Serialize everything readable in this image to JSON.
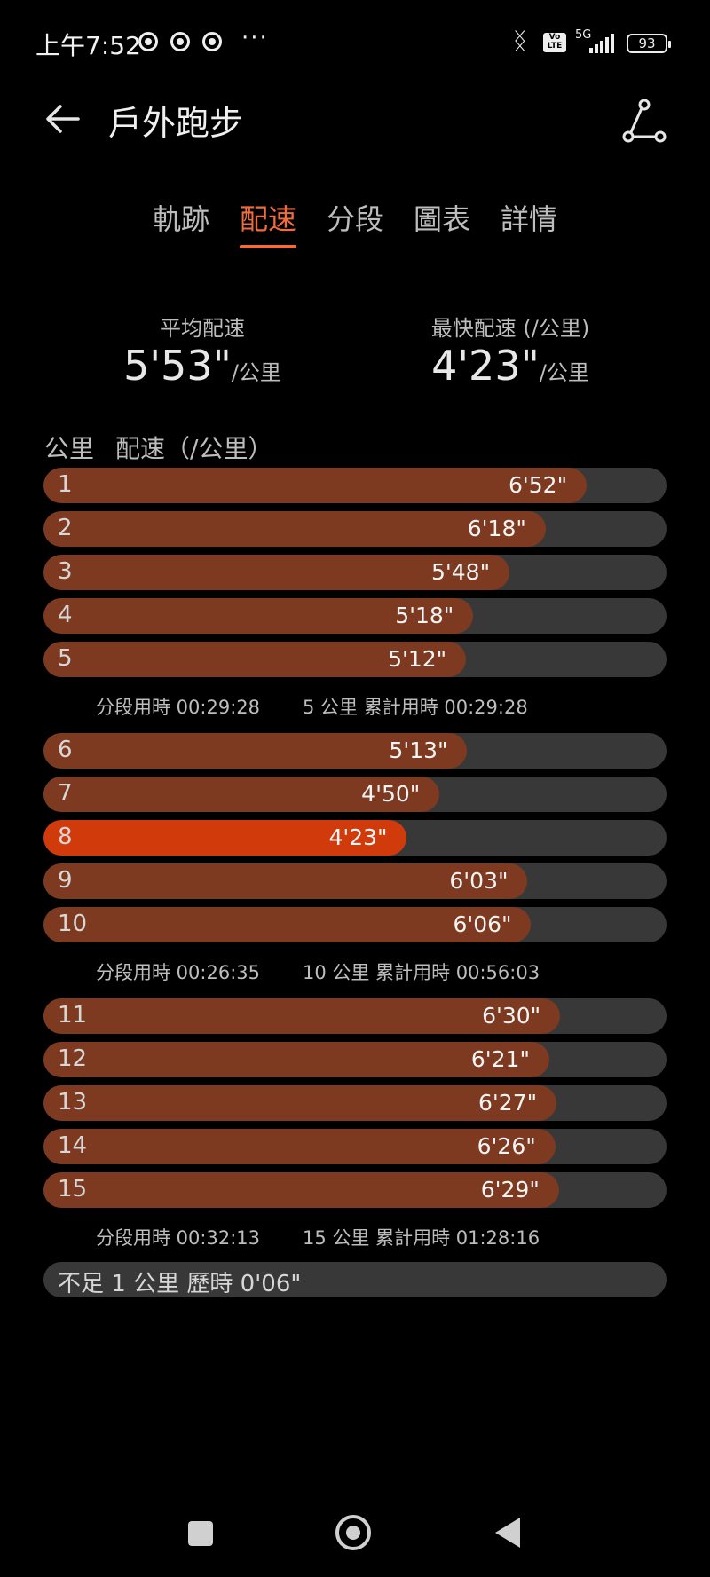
{
  "status_bar": {
    "time": "上午7:52",
    "dots": "···",
    "volte": "Vo LTE",
    "network": "5G",
    "battery": "93"
  },
  "header": {
    "title": "戶外跑步"
  },
  "tabs": [
    {
      "label": "軌跡",
      "active": false
    },
    {
      "label": "配速",
      "active": true
    },
    {
      "label": "分段",
      "active": false
    },
    {
      "label": "圖表",
      "active": false
    },
    {
      "label": "詳情",
      "active": false
    }
  ],
  "stats": {
    "avg": {
      "label": "平均配速",
      "value": "5'53\"",
      "unit": "/公里"
    },
    "fastest": {
      "label": "最快配速 (/公里)",
      "value": "4'23\"",
      "unit": "/公里"
    }
  },
  "column_headers": {
    "km": "公里",
    "pace": "配速（/公里）"
  },
  "splits": [
    {
      "km": "1",
      "pace": "6'52\"",
      "seconds": 412
    },
    {
      "km": "2",
      "pace": "6'18\"",
      "seconds": 378
    },
    {
      "km": "3",
      "pace": "5'48\"",
      "seconds": 348
    },
    {
      "km": "4",
      "pace": "5'18\"",
      "seconds": 318
    },
    {
      "km": "5",
      "pace": "5'12\"",
      "seconds": 312
    },
    {
      "km": "6",
      "pace": "5'13\"",
      "seconds": 313
    },
    {
      "km": "7",
      "pace": "4'50\"",
      "seconds": 290
    },
    {
      "km": "8",
      "pace": "4'23\"",
      "seconds": 263,
      "fastest": true
    },
    {
      "km": "9",
      "pace": "6'03\"",
      "seconds": 363
    },
    {
      "km": "10",
      "pace": "6'06\"",
      "seconds": 366
    },
    {
      "km": "11",
      "pace": "6'30\"",
      "seconds": 390
    },
    {
      "km": "12",
      "pace": "6'21\"",
      "seconds": 381
    },
    {
      "km": "13",
      "pace": "6'27\"",
      "seconds": 387
    },
    {
      "km": "14",
      "pace": "6'26\"",
      "seconds": 386
    },
    {
      "km": "15",
      "pace": "6'29\"",
      "seconds": 389
    }
  ],
  "summaries": [
    {
      "segment": "分段用時 00:29:28",
      "cumulative": "5 公里 累計用時 00:29:28"
    },
    {
      "segment": "分段用時 00:26:35",
      "cumulative": "10 公里 累計用時 00:56:03"
    },
    {
      "segment": "分段用時 00:32:13",
      "cumulative": "15 公里 累計用時 01:28:16"
    }
  ],
  "remainder": "不足 1 公里 歷時 0'06\"",
  "colors": {
    "accent": "#f26b3c",
    "bar": "#7d3a20",
    "fastest_bar": "#d13a0a",
    "track": "#383838"
  }
}
